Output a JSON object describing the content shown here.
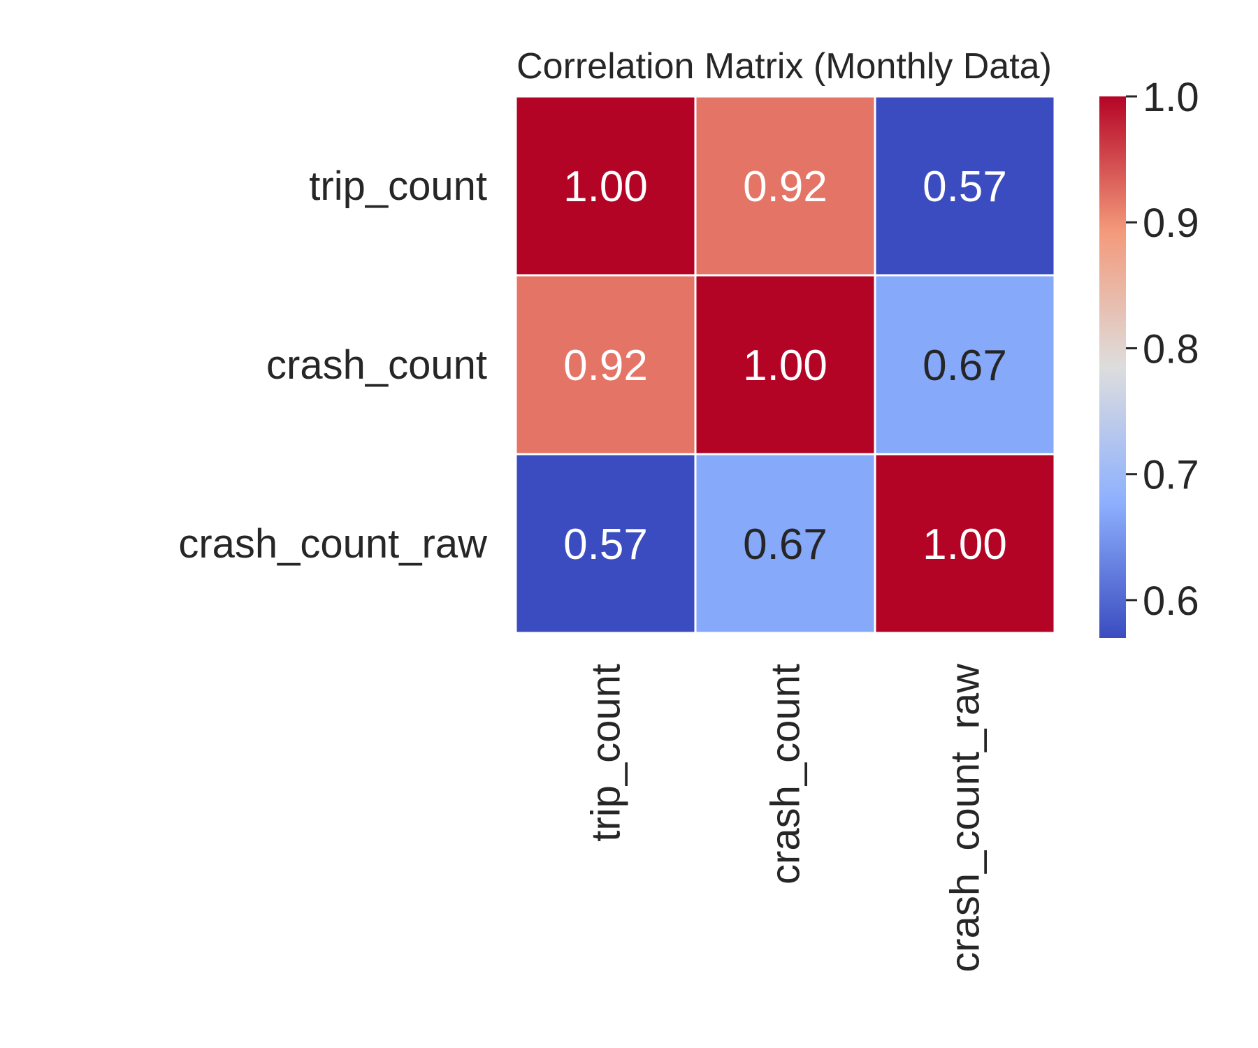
{
  "chart_data": {
    "type": "heatmap",
    "title": "Correlation Matrix (Monthly Data)",
    "rows": [
      "trip_count",
      "crash_count",
      "crash_count_raw"
    ],
    "columns": [
      "trip_count",
      "crash_count",
      "crash_count_raw"
    ],
    "values": [
      [
        1.0,
        0.92,
        0.57
      ],
      [
        0.92,
        1.0,
        0.67
      ],
      [
        0.57,
        0.67,
        1.0
      ]
    ],
    "value_format": "0.00",
    "colormap": "coolwarm",
    "colorbar": {
      "min": 0.57,
      "max": 1.0,
      "ticks": [
        0.6,
        0.7,
        0.8,
        0.9,
        1.0
      ],
      "tick_labels": [
        "0.6",
        "0.7",
        "0.8",
        "0.9",
        "1.0"
      ]
    },
    "colors": {
      "low": "#3b4cc0",
      "mid": "#dddddd",
      "high": "#b40426",
      "dark_text": "#262626",
      "light_text": "#ffffff"
    }
  }
}
